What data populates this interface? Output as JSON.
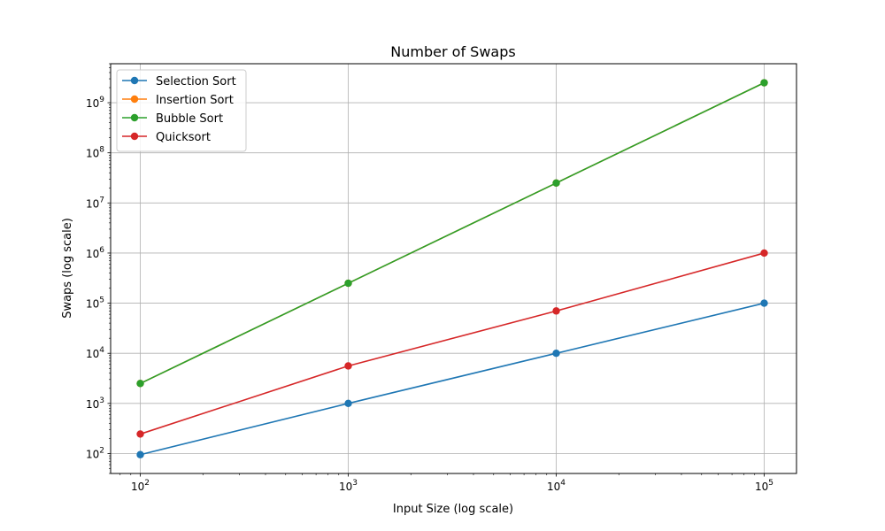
{
  "chart_data": {
    "type": "line",
    "title": "Number of Swaps",
    "xlabel": "Input Size (log scale)",
    "ylabel": "Swaps (log scale)",
    "xscale": "log",
    "yscale": "log",
    "xlim": [
      72,
      143000
    ],
    "ylim": [
      40,
      6000000000
    ],
    "grid": true,
    "legend_position": "top-left",
    "x": [
      100,
      1000,
      10000,
      100000
    ],
    "x_tick_labels": [
      {
        "value": 100,
        "base": "10",
        "exp": "2"
      },
      {
        "value": 1000,
        "base": "10",
        "exp": "3"
      },
      {
        "value": 10000,
        "base": "10",
        "exp": "4"
      },
      {
        "value": 100000,
        "base": "10",
        "exp": "5"
      }
    ],
    "y_tick_labels": [
      {
        "value": 100,
        "base": "10",
        "exp": "2"
      },
      {
        "value": 1000,
        "base": "10",
        "exp": "3"
      },
      {
        "value": 10000,
        "base": "10",
        "exp": "4"
      },
      {
        "value": 100000,
        "base": "10",
        "exp": "5"
      },
      {
        "value": 1000000,
        "base": "10",
        "exp": "6"
      },
      {
        "value": 10000000,
        "base": "10",
        "exp": "7"
      },
      {
        "value": 100000000,
        "base": "10",
        "exp": "8"
      },
      {
        "value": 1000000000,
        "base": "10",
        "exp": "9"
      }
    ],
    "series": [
      {
        "name": "Selection Sort",
        "color": "#1f77b4",
        "values": [
          95,
          1000,
          10000,
          100000
        ]
      },
      {
        "name": "Insertion Sort",
        "color": "#ff7f0e",
        "values": [
          2500,
          250000,
          25000000,
          2500000000
        ]
      },
      {
        "name": "Bubble Sort",
        "color": "#2ca02c",
        "values": [
          2500,
          250000,
          25000000,
          2500000000
        ]
      },
      {
        "name": "Quicksort",
        "color": "#d62728",
        "values": [
          245,
          5600,
          70000,
          1000000
        ]
      }
    ]
  }
}
